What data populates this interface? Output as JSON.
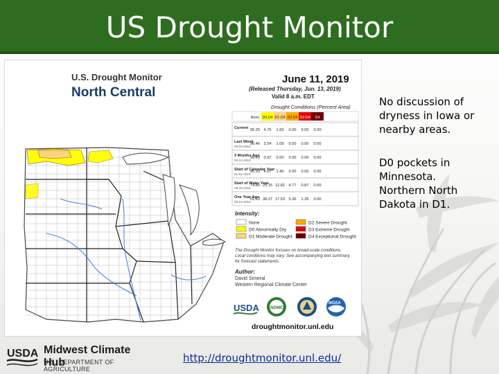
{
  "slide": {
    "title": "US Drought Monitor"
  },
  "notes": [
    "No discussion of dryness in Iowa or nearby areas.",
    "D0 pockets in Minnesota. Northern North Dakota in D1."
  ],
  "link": {
    "text": "http://droughtmonitor.unl.edu/"
  },
  "footer": {
    "logo_text": "USDA",
    "title": "Midwest Climate Hub",
    "subtitle": "U.S. DEPARTMENT OF AGRICULTURE"
  },
  "map": {
    "header": {
      "line1": "U.S. Drought Monitor",
      "line2": "North Central"
    },
    "date": "June 11, 2019",
    "released": "(Released Thursday, Jun. 13, 2019)",
    "valid": "Valid 8 a.m. EDT",
    "table": {
      "title": "Drought Conditions (Percent Area)",
      "columns": [
        "None",
        "D0-D4",
        "D1-D4",
        "D2-D4",
        "D3-D4",
        "D4"
      ],
      "rows": [
        {
          "label": "Current",
          "date": "",
          "values": [
            "95.25",
            "4.75",
            "1.60",
            "0.00",
            "0.00",
            "0.00"
          ]
        },
        {
          "label": "Last Week",
          "date": "06-04-2019",
          "values": [
            "96.46",
            "3.54",
            "1.09",
            "0.00",
            "0.00",
            "0.00"
          ]
        },
        {
          "label": "3 Months Ago",
          "date": "03-12-2019",
          "values": [
            "99.03",
            "0.97",
            "0.00",
            "0.00",
            "0.00",
            "0.00"
          ]
        },
        {
          "label": "Start of Calendar Year",
          "date": "01-01-2019",
          "values": [
            "95.93",
            "4.07",
            "1.40",
            "0.00",
            "0.00",
            "0.00"
          ]
        },
        {
          "label": "Start of Water Year",
          "date": "09-25-2018",
          "values": [
            "74.85",
            "25.15",
            "12.62",
            "4.77",
            "0.87",
            "0.00"
          ]
        },
        {
          "label": "One Year Ago",
          "date": "06-12-2018",
          "values": [
            "61.63",
            "38.37",
            "17.53",
            "5.36",
            "1.35",
            "0.00"
          ]
        }
      ]
    },
    "intensity": {
      "title": "Intensity:",
      "items": [
        {
          "label": "None",
          "color": "#ffffff"
        },
        {
          "label": "D0 Abnormally Dry",
          "color": "#ffff00"
        },
        {
          "label": "D1 Moderate Drought",
          "color": "#fcd37f"
        },
        {
          "label": "D2 Severe Drought",
          "color": "#ffaa00"
        },
        {
          "label": "D3 Extreme Drought",
          "color": "#e60000"
        },
        {
          "label": "D4 Exceptional Drought",
          "color": "#730000"
        }
      ]
    },
    "disclaimer": [
      "The Drought Monitor focuses on broad-scale conditions.",
      "Local conditions may vary. See accompanying text summary",
      "for forecast statements."
    ],
    "author": {
      "title": "Author:",
      "name": "David Simeral",
      "org": "Western Regional Climate Center"
    },
    "logos": [
      "USDA",
      "NDMC",
      "NOAA"
    ],
    "site": "droughtmonitor.unl.edu"
  },
  "colors": {
    "title_bar": "#2e6d1f",
    "link": "#0b2d9b",
    "d0": "#ffff00",
    "d1": "#fcd37f"
  }
}
